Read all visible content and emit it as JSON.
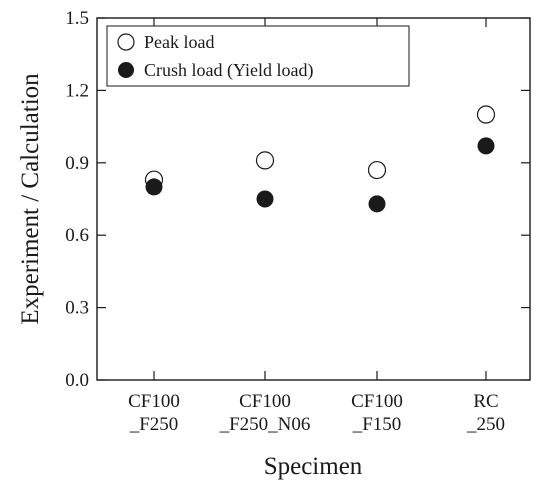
{
  "chart_data": {
    "type": "scatter",
    "categories": [
      "CF100\n_F250",
      "CF100\n_F250_N06",
      "CF100\n_F150",
      "RC\n_250"
    ],
    "series": [
      {
        "name": "Peak load",
        "marker": "open-circle",
        "values": [
          0.83,
          0.91,
          0.87,
          1.1
        ]
      },
      {
        "name": "Crush load (Yield load)",
        "marker": "filled-circle",
        "values": [
          0.8,
          0.75,
          0.73,
          0.97
        ]
      }
    ],
    "yticks": [
      "0.0",
      "0.3",
      "0.6",
      "0.9",
      "1.2",
      "1.5"
    ],
    "ylim": [
      0,
      1.5
    ],
    "xlabel": "Specimen",
    "ylabel": "Experiment / Calculation",
    "legend_position": "top-left",
    "grid": false,
    "colors": {
      "axis": "#1a1a1a",
      "marker": "#1a1a1a",
      "background": "#ffffff"
    }
  }
}
